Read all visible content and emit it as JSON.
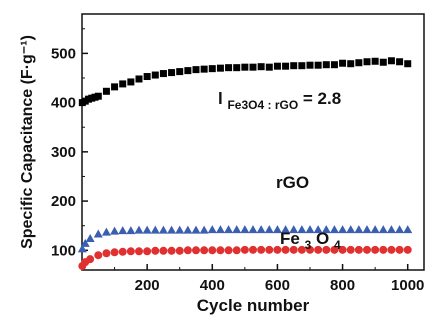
{
  "chart_data": {
    "type": "scatter",
    "xlabel": "Cycle number",
    "ylabel": "Specific Capacitance (F·g⁻¹)",
    "xlim": [
      0,
      1050
    ],
    "ylim": [
      60,
      580
    ],
    "xticks": [
      200,
      400,
      600,
      800,
      1000
    ],
    "yticks": [
      100,
      200,
      300,
      400,
      500
    ],
    "grid": false,
    "series": [
      {
        "name": "l Fe3O4 : rGO = 2.8",
        "marker": "square",
        "color": "#000000",
        "x": [
          1,
          10,
          20,
          30,
          40,
          50,
          75,
          100,
          125,
          150,
          175,
          200,
          225,
          250,
          275,
          300,
          325,
          350,
          375,
          400,
          425,
          450,
          475,
          500,
          525,
          550,
          575,
          600,
          625,
          650,
          675,
          700,
          725,
          750,
          775,
          800,
          825,
          850,
          875,
          900,
          925,
          950,
          975,
          1000
        ],
        "values": [
          400,
          403,
          407,
          409,
          411,
          413,
          423,
          432,
          438,
          442,
          448,
          453,
          456,
          459,
          461,
          463,
          465,
          467,
          468,
          469,
          470,
          471,
          471,
          472,
          472,
          473,
          472,
          474,
          474,
          475,
          475,
          476,
          476,
          477,
          477,
          480,
          479,
          481,
          483,
          484,
          482,
          485,
          483,
          479
        ]
      },
      {
        "name": "rGO",
        "marker": "triangle",
        "color": "#3a5fb0",
        "x": [
          1,
          10,
          25,
          50,
          75,
          100,
          125,
          150,
          175,
          200,
          225,
          250,
          275,
          300,
          325,
          350,
          375,
          400,
          425,
          450,
          475,
          500,
          525,
          550,
          575,
          600,
          625,
          650,
          675,
          700,
          725,
          750,
          775,
          800,
          825,
          850,
          875,
          900,
          925,
          950,
          975,
          1000
        ],
        "values": [
          103,
          114,
          124,
          133,
          137,
          139,
          140,
          140,
          141,
          141,
          141,
          141,
          141,
          141,
          141,
          141,
          141,
          142,
          142,
          142,
          142,
          142,
          142,
          142,
          142,
          142,
          142,
          142,
          142,
          142,
          142,
          142,
          142,
          142,
          142,
          142,
          142,
          142,
          142,
          142,
          142,
          142
        ]
      },
      {
        "name": "Fe3O4",
        "marker": "circle",
        "color": "#e03030",
        "x": [
          1,
          10,
          25,
          50,
          75,
          100,
          125,
          150,
          175,
          200,
          225,
          250,
          275,
          300,
          325,
          350,
          375,
          400,
          425,
          450,
          475,
          500,
          525,
          550,
          575,
          600,
          625,
          650,
          675,
          700,
          725,
          750,
          775,
          800,
          825,
          850,
          875,
          900,
          925,
          950,
          975,
          1000
        ],
        "values": [
          68,
          76,
          82,
          90,
          94,
          96,
          97,
          98,
          98,
          98,
          99,
          99,
          99,
          99,
          100,
          100,
          100,
          100,
          100,
          100,
          100,
          101,
          101,
          101,
          101,
          101,
          101,
          101,
          101,
          101,
          101,
          101,
          101,
          101,
          101,
          101,
          101,
          101,
          101,
          101,
          101,
          101
        ]
      }
    ],
    "annotations": {
      "ratio_prefix": "l",
      "ratio_sub": "Fe3O4 : rGO",
      "ratio_suffix": " = 2.8",
      "rgo": "rGO",
      "fe3o4_main": "Fe",
      "fe3o4_sub1": "3",
      "fe3o4_mid": "O",
      "fe3o4_sub2": "4"
    }
  }
}
